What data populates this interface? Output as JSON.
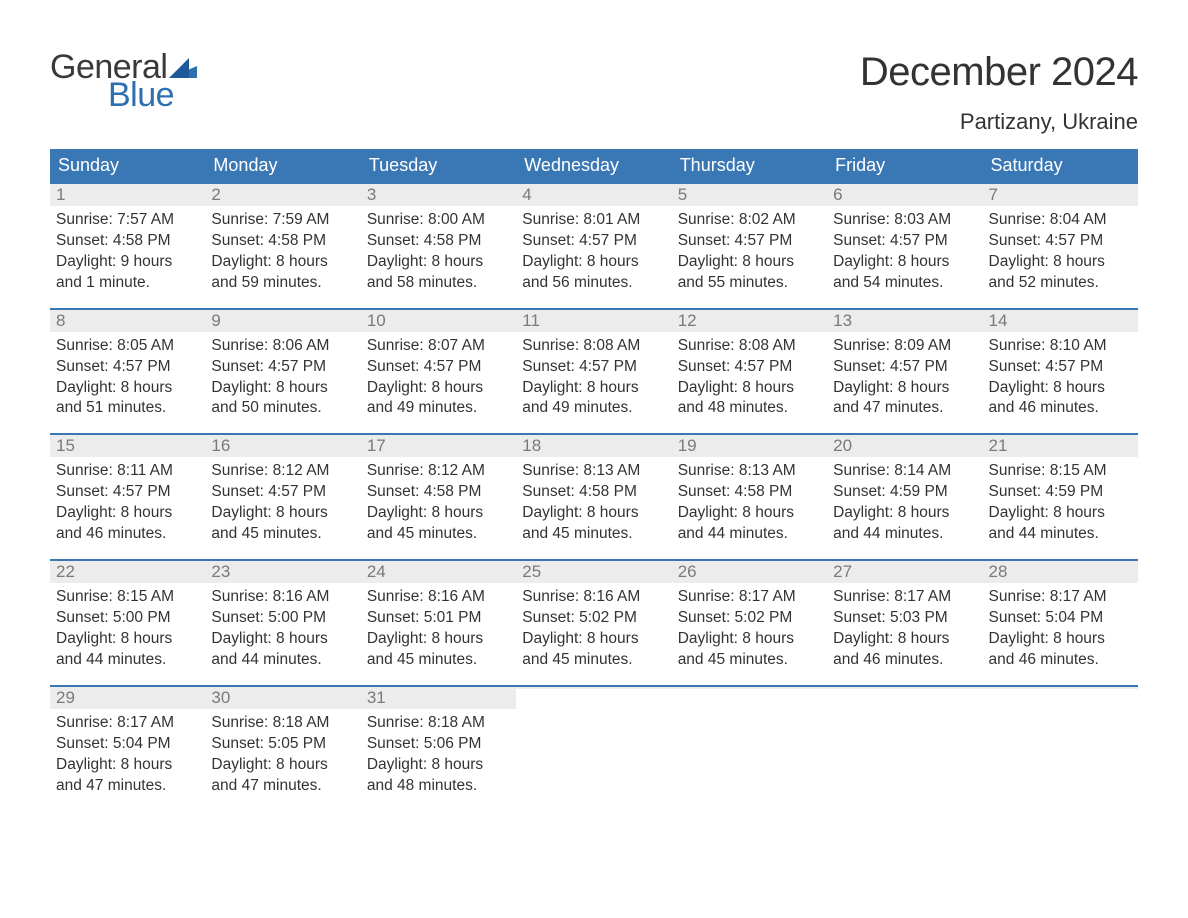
{
  "colors": {
    "header_bg": "#3a78b5",
    "header_text": "#ffffff",
    "daynum_bg": "#ececec",
    "daynum_text": "#7a7a7a",
    "body_text": "#333333",
    "week_border": "#3a78b5",
    "page_bg": "#ffffff",
    "logo_gray": "#3a3a3a",
    "logo_blue": "#2f6fb0"
  },
  "logo": {
    "top": "General",
    "bottom": "Blue"
  },
  "title": "December 2024",
  "location": "Partizany, Ukraine",
  "days_of_week": [
    "Sunday",
    "Monday",
    "Tuesday",
    "Wednesday",
    "Thursday",
    "Friday",
    "Saturday"
  ],
  "weeks": [
    [
      {
        "n": "1",
        "sr": "Sunrise: 7:57 AM",
        "ss": "Sunset: 4:58 PM",
        "d1": "Daylight: 9 hours",
        "d2": "and 1 minute."
      },
      {
        "n": "2",
        "sr": "Sunrise: 7:59 AM",
        "ss": "Sunset: 4:58 PM",
        "d1": "Daylight: 8 hours",
        "d2": "and 59 minutes."
      },
      {
        "n": "3",
        "sr": "Sunrise: 8:00 AM",
        "ss": "Sunset: 4:58 PM",
        "d1": "Daylight: 8 hours",
        "d2": "and 58 minutes."
      },
      {
        "n": "4",
        "sr": "Sunrise: 8:01 AM",
        "ss": "Sunset: 4:57 PM",
        "d1": "Daylight: 8 hours",
        "d2": "and 56 minutes."
      },
      {
        "n": "5",
        "sr": "Sunrise: 8:02 AM",
        "ss": "Sunset: 4:57 PM",
        "d1": "Daylight: 8 hours",
        "d2": "and 55 minutes."
      },
      {
        "n": "6",
        "sr": "Sunrise: 8:03 AM",
        "ss": "Sunset: 4:57 PM",
        "d1": "Daylight: 8 hours",
        "d2": "and 54 minutes."
      },
      {
        "n": "7",
        "sr": "Sunrise: 8:04 AM",
        "ss": "Sunset: 4:57 PM",
        "d1": "Daylight: 8 hours",
        "d2": "and 52 minutes."
      }
    ],
    [
      {
        "n": "8",
        "sr": "Sunrise: 8:05 AM",
        "ss": "Sunset: 4:57 PM",
        "d1": "Daylight: 8 hours",
        "d2": "and 51 minutes."
      },
      {
        "n": "9",
        "sr": "Sunrise: 8:06 AM",
        "ss": "Sunset: 4:57 PM",
        "d1": "Daylight: 8 hours",
        "d2": "and 50 minutes."
      },
      {
        "n": "10",
        "sr": "Sunrise: 8:07 AM",
        "ss": "Sunset: 4:57 PM",
        "d1": "Daylight: 8 hours",
        "d2": "and 49 minutes."
      },
      {
        "n": "11",
        "sr": "Sunrise: 8:08 AM",
        "ss": "Sunset: 4:57 PM",
        "d1": "Daylight: 8 hours",
        "d2": "and 49 minutes."
      },
      {
        "n": "12",
        "sr": "Sunrise: 8:08 AM",
        "ss": "Sunset: 4:57 PM",
        "d1": "Daylight: 8 hours",
        "d2": "and 48 minutes."
      },
      {
        "n": "13",
        "sr": "Sunrise: 8:09 AM",
        "ss": "Sunset: 4:57 PM",
        "d1": "Daylight: 8 hours",
        "d2": "and 47 minutes."
      },
      {
        "n": "14",
        "sr": "Sunrise: 8:10 AM",
        "ss": "Sunset: 4:57 PM",
        "d1": "Daylight: 8 hours",
        "d2": "and 46 minutes."
      }
    ],
    [
      {
        "n": "15",
        "sr": "Sunrise: 8:11 AM",
        "ss": "Sunset: 4:57 PM",
        "d1": "Daylight: 8 hours",
        "d2": "and 46 minutes."
      },
      {
        "n": "16",
        "sr": "Sunrise: 8:12 AM",
        "ss": "Sunset: 4:57 PM",
        "d1": "Daylight: 8 hours",
        "d2": "and 45 minutes."
      },
      {
        "n": "17",
        "sr": "Sunrise: 8:12 AM",
        "ss": "Sunset: 4:58 PM",
        "d1": "Daylight: 8 hours",
        "d2": "and 45 minutes."
      },
      {
        "n": "18",
        "sr": "Sunrise: 8:13 AM",
        "ss": "Sunset: 4:58 PM",
        "d1": "Daylight: 8 hours",
        "d2": "and 45 minutes."
      },
      {
        "n": "19",
        "sr": "Sunrise: 8:13 AM",
        "ss": "Sunset: 4:58 PM",
        "d1": "Daylight: 8 hours",
        "d2": "and 44 minutes."
      },
      {
        "n": "20",
        "sr": "Sunrise: 8:14 AM",
        "ss": "Sunset: 4:59 PM",
        "d1": "Daylight: 8 hours",
        "d2": "and 44 minutes."
      },
      {
        "n": "21",
        "sr": "Sunrise: 8:15 AM",
        "ss": "Sunset: 4:59 PM",
        "d1": "Daylight: 8 hours",
        "d2": "and 44 minutes."
      }
    ],
    [
      {
        "n": "22",
        "sr": "Sunrise: 8:15 AM",
        "ss": "Sunset: 5:00 PM",
        "d1": "Daylight: 8 hours",
        "d2": "and 44 minutes."
      },
      {
        "n": "23",
        "sr": "Sunrise: 8:16 AM",
        "ss": "Sunset: 5:00 PM",
        "d1": "Daylight: 8 hours",
        "d2": "and 44 minutes."
      },
      {
        "n": "24",
        "sr": "Sunrise: 8:16 AM",
        "ss": "Sunset: 5:01 PM",
        "d1": "Daylight: 8 hours",
        "d2": "and 45 minutes."
      },
      {
        "n": "25",
        "sr": "Sunrise: 8:16 AM",
        "ss": "Sunset: 5:02 PM",
        "d1": "Daylight: 8 hours",
        "d2": "and 45 minutes."
      },
      {
        "n": "26",
        "sr": "Sunrise: 8:17 AM",
        "ss": "Sunset: 5:02 PM",
        "d1": "Daylight: 8 hours",
        "d2": "and 45 minutes."
      },
      {
        "n": "27",
        "sr": "Sunrise: 8:17 AM",
        "ss": "Sunset: 5:03 PM",
        "d1": "Daylight: 8 hours",
        "d2": "and 46 minutes."
      },
      {
        "n": "28",
        "sr": "Sunrise: 8:17 AM",
        "ss": "Sunset: 5:04 PM",
        "d1": "Daylight: 8 hours",
        "d2": "and 46 minutes."
      }
    ],
    [
      {
        "n": "29",
        "sr": "Sunrise: 8:17 AM",
        "ss": "Sunset: 5:04 PM",
        "d1": "Daylight: 8 hours",
        "d2": "and 47 minutes."
      },
      {
        "n": "30",
        "sr": "Sunrise: 8:18 AM",
        "ss": "Sunset: 5:05 PM",
        "d1": "Daylight: 8 hours",
        "d2": "and 47 minutes."
      },
      {
        "n": "31",
        "sr": "Sunrise: 8:18 AM",
        "ss": "Sunset: 5:06 PM",
        "d1": "Daylight: 8 hours",
        "d2": "and 48 minutes."
      },
      {
        "empty": true
      },
      {
        "empty": true
      },
      {
        "empty": true
      },
      {
        "empty": true
      }
    ]
  ]
}
